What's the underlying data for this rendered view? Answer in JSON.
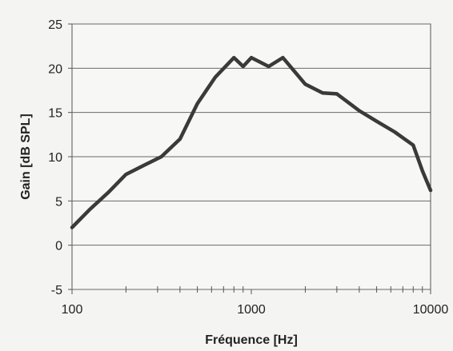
{
  "chart_data": {
    "type": "line",
    "title": "",
    "xlabel": "Fréquence [Hz]",
    "ylabel": "Gain [dB SPL]",
    "xscale": "log",
    "xlim": [
      100,
      10000
    ],
    "ylim": [
      -5,
      25
    ],
    "x_ticks": [
      100,
      1000,
      10000
    ],
    "x_tick_labels": [
      "100",
      "1000",
      "10000"
    ],
    "y_ticks": [
      -5,
      0,
      5,
      10,
      15,
      20,
      25
    ],
    "y_tick_labels": [
      "-5",
      "0",
      "5",
      "10",
      "15",
      "20",
      "25"
    ],
    "grid": "horizontal",
    "legend": "none",
    "line_color": "#3a3a3a",
    "series": [
      {
        "x": [
          100,
          125,
          160,
          200,
          250,
          315,
          400,
          500,
          630,
          800,
          900,
          1000,
          1250,
          1500,
          2000,
          2500,
          3000,
          4000,
          5000,
          6300,
          8000,
          9000,
          10000
        ],
        "y": [
          2,
          4,
          6,
          8,
          9,
          10,
          12,
          16,
          19,
          21.2,
          20.2,
          21.2,
          20.2,
          21.2,
          18.2,
          17.2,
          17.1,
          15.2,
          14,
          12.8,
          11.3,
          8.4,
          6.2
        ]
      }
    ]
  }
}
